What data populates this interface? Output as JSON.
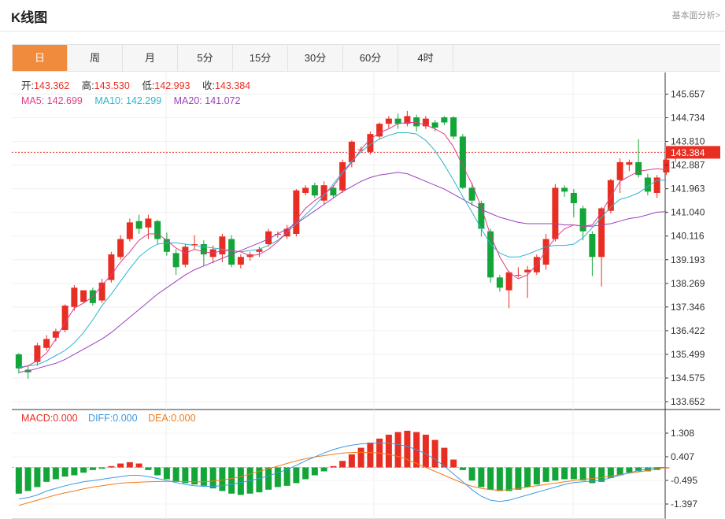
{
  "header": {
    "title": "K线图",
    "more_link": "基本面分析>"
  },
  "tabs": [
    {
      "label": "日",
      "active": true
    },
    {
      "label": "周"
    },
    {
      "label": "月"
    },
    {
      "label": "5分"
    },
    {
      "label": "15分"
    },
    {
      "label": "30分"
    },
    {
      "label": "60分"
    },
    {
      "label": "4时"
    }
  ],
  "legend": {
    "open_label": "开:",
    "open": "143.362",
    "high_label": "高:",
    "high": "143.530",
    "low_label": "低:",
    "low": "142.993",
    "close_label": "收:",
    "close": "143.384",
    "ma5_label": "MA5:",
    "ma5": "142.699",
    "ma10_label": "MA10:",
    "ma10": "142.299",
    "ma20_label": "MA20:",
    "ma20": "141.072"
  },
  "macd_legend": {
    "macd_label": "MACD:",
    "macd": "0.000",
    "diff_label": "DIFF:",
    "diff": "0.000",
    "dea_label": "DEA:",
    "dea": "0.000"
  },
  "colors": {
    "up": "#e82e22",
    "down": "#13a538",
    "ma5": "#dd3d89",
    "ma10": "#2cb5cf",
    "ma20": "#9b3fbf",
    "diff": "#3b9ae6",
    "dea": "#f07b1a",
    "last_price_line": "#e82e22"
  },
  "chart_data": {
    "type": "candlestick",
    "price_axis": {
      "ticks": [
        145.657,
        144.734,
        143.81,
        142.887,
        141.963,
        141.04,
        140.116,
        139.193,
        138.269,
        137.346,
        136.422,
        135.499,
        134.575,
        133.652
      ],
      "last_price_label": "143.384"
    },
    "macd_axis": {
      "ticks": [
        1.308,
        0.407,
        -0.495,
        -1.397
      ]
    },
    "candles": [
      [
        135.5,
        134.95,
        135.55,
        134.75
      ],
      [
        134.9,
        134.8,
        135.05,
        134.55
      ],
      [
        135.2,
        135.85,
        135.95,
        135.05
      ],
      [
        135.75,
        136.1,
        136.25,
        135.65
      ],
      [
        136.15,
        136.4,
        136.5,
        136.0
      ],
      [
        136.45,
        137.4,
        137.45,
        136.35
      ],
      [
        137.35,
        138.1,
        138.2,
        137.2
      ],
      [
        137.55,
        138.0,
        138.0,
        137.5
      ],
      [
        138.0,
        137.5,
        138.1,
        137.4
      ],
      [
        137.6,
        138.3,
        138.45,
        137.5
      ],
      [
        138.4,
        139.4,
        139.5,
        138.3
      ],
      [
        139.3,
        140.0,
        140.15,
        139.2
      ],
      [
        140.0,
        140.65,
        140.8,
        139.9
      ],
      [
        140.7,
        140.4,
        140.95,
        140.2
      ],
      [
        140.45,
        140.8,
        140.95,
        140.0
      ],
      [
        140.7,
        140.0,
        140.75,
        139.8
      ],
      [
        140.0,
        139.5,
        140.25,
        139.35
      ],
      [
        139.45,
        138.9,
        139.6,
        138.6
      ],
      [
        139.0,
        139.7,
        139.8,
        138.9
      ],
      [
        139.8,
        139.8,
        140.15,
        139.6
      ],
      [
        139.8,
        139.4,
        139.95,
        138.95
      ],
      [
        139.3,
        139.6,
        139.75,
        139.05
      ],
      [
        139.4,
        140.1,
        140.2,
        139.1
      ],
      [
        140.0,
        139.0,
        140.15,
        138.9
      ],
      [
        139.0,
        139.3,
        139.4,
        138.85
      ],
      [
        139.3,
        139.4,
        139.5,
        139.15
      ],
      [
        139.5,
        139.6,
        139.7,
        139.3
      ],
      [
        139.8,
        140.3,
        140.4,
        139.7
      ],
      [
        140.2,
        140.2,
        140.3,
        140.05
      ],
      [
        140.1,
        140.4,
        140.55,
        140.0
      ],
      [
        140.2,
        141.9,
        141.95,
        140.1
      ],
      [
        141.8,
        142.0,
        142.1,
        141.7
      ],
      [
        142.1,
        141.7,
        142.2,
        141.6
      ],
      [
        141.5,
        142.1,
        142.25,
        141.35
      ],
      [
        142.0,
        141.7,
        142.1,
        141.6
      ],
      [
        141.9,
        143.0,
        143.1,
        141.8
      ],
      [
        143.0,
        143.8,
        143.85,
        142.8
      ],
      [
        143.5,
        143.5,
        143.6,
        143.4
      ],
      [
        143.4,
        144.1,
        144.2,
        143.3
      ],
      [
        144.0,
        144.5,
        144.55,
        143.9
      ],
      [
        144.5,
        144.7,
        144.8,
        144.3
      ],
      [
        144.7,
        144.5,
        144.9,
        144.3
      ],
      [
        144.5,
        144.8,
        145.0,
        144.4
      ],
      [
        144.75,
        144.4,
        144.85,
        144.2
      ],
      [
        144.4,
        144.7,
        144.8,
        144.3
      ],
      [
        144.55,
        144.35,
        144.65,
        144.2
      ],
      [
        144.75,
        144.55,
        144.8,
        144.45
      ],
      [
        144.75,
        144.0,
        144.8,
        143.9
      ],
      [
        144.0,
        142.0,
        144.1,
        141.95
      ],
      [
        142.0,
        141.5,
        142.2,
        141.3
      ],
      [
        141.4,
        140.4,
        141.5,
        140.1
      ],
      [
        140.3,
        138.5,
        140.4,
        138.3
      ],
      [
        138.5,
        138.1,
        138.6,
        137.95
      ],
      [
        138.0,
        138.7,
        138.75,
        137.3
      ],
      [
        138.6,
        138.6,
        138.9,
        138.5
      ],
      [
        138.7,
        138.8,
        138.95,
        137.7
      ],
      [
        138.7,
        139.3,
        139.4,
        138.6
      ],
      [
        139.0,
        140.0,
        140.2,
        138.8
      ],
      [
        140.0,
        142.0,
        142.15,
        139.9
      ],
      [
        142.0,
        141.85,
        142.1,
        141.65
      ],
      [
        141.8,
        141.4,
        141.95,
        140.85
      ],
      [
        141.2,
        140.3,
        141.3,
        139.95
      ],
      [
        140.2,
        139.3,
        140.3,
        138.55
      ],
      [
        139.3,
        141.2,
        141.25,
        138.15
      ],
      [
        141.1,
        142.3,
        142.35,
        141.0
      ],
      [
        142.3,
        143.0,
        143.15,
        141.8
      ],
      [
        142.9,
        143.0,
        143.1,
        142.65
      ],
      [
        143.0,
        142.5,
        143.9,
        142.4
      ],
      [
        142.4,
        141.85,
        142.55,
        141.7
      ],
      [
        141.8,
        142.4,
        142.5,
        141.6
      ],
      [
        142.6,
        143.1,
        143.2,
        142.5
      ],
      [
        143.362,
        143.384,
        143.53,
        142.993
      ]
    ],
    "ma5": [
      134.95,
      135.05,
      135.25,
      135.55,
      136.1,
      136.75,
      137.3,
      137.5,
      137.75,
      138.2,
      138.6,
      139.1,
      139.5,
      139.95,
      140.2,
      140.2,
      139.95,
      139.65,
      139.45,
      139.6,
      139.5,
      139.45,
      139.55,
      139.55,
      139.5,
      139.35,
      139.4,
      139.6,
      139.9,
      140.25,
      140.75,
      141.2,
      141.5,
      141.75,
      142.05,
      142.55,
      143.0,
      143.5,
      143.9,
      144.15,
      144.3,
      144.5,
      144.55,
      144.55,
      144.45,
      144.3,
      144.1,
      143.6,
      142.85,
      142.15,
      141.25,
      140.15,
      139.3,
      138.7,
      138.45,
      138.6,
      139.0,
      139.55,
      140.05,
      140.4,
      140.55,
      140.5,
      140.55,
      141.05,
      141.65,
      142.25,
      142.45,
      142.65,
      142.7,
      142.75,
      142.7
    ],
    "ma10": [
      135.0,
      135.05,
      135.1,
      135.25,
      135.45,
      135.65,
      135.95,
      136.35,
      136.85,
      137.4,
      137.85,
      138.35,
      138.85,
      139.3,
      139.6,
      139.8,
      139.85,
      139.85,
      139.8,
      139.75,
      139.7,
      139.65,
      139.6,
      139.55,
      139.5,
      139.55,
      139.6,
      139.75,
      139.95,
      140.25,
      140.6,
      140.95,
      141.3,
      141.7,
      142.15,
      142.6,
      143.05,
      143.4,
      143.7,
      143.9,
      144.05,
      144.15,
      144.15,
      144.1,
      143.85,
      143.45,
      142.9,
      142.3,
      141.65,
      141.05,
      140.4,
      139.8,
      139.45,
      139.3,
      139.3,
      139.4,
      139.55,
      139.7,
      139.75,
      139.75,
      139.8,
      140.05,
      140.45,
      140.85,
      141.25,
      141.55,
      141.65,
      141.8,
      142.05,
      142.3,
      142.3
    ],
    "ma20": [
      134.8,
      134.85,
      134.95,
      135.05,
      135.15,
      135.3,
      135.5,
      135.7,
      135.9,
      136.1,
      136.35,
      136.65,
      136.95,
      137.25,
      137.55,
      137.85,
      138.1,
      138.35,
      138.6,
      138.8,
      138.95,
      139.1,
      139.25,
      139.4,
      139.55,
      139.7,
      139.85,
      140.0,
      140.2,
      140.4,
      140.6,
      140.85,
      141.1,
      141.35,
      141.6,
      141.85,
      142.05,
      142.25,
      142.4,
      142.5,
      142.55,
      142.6,
      142.55,
      142.4,
      142.25,
      142.1,
      141.95,
      141.75,
      141.55,
      141.35,
      141.15,
      141.0,
      140.85,
      140.75,
      140.65,
      140.6,
      140.6,
      140.6,
      140.6,
      140.55,
      140.55,
      140.5,
      140.5,
      140.55,
      140.6,
      140.7,
      140.8,
      140.85,
      140.95,
      141.05,
      141.07
    ],
    "macd_bars": [
      -1.0,
      -0.9,
      -0.75,
      -0.55,
      -0.45,
      -0.35,
      -0.3,
      -0.2,
      -0.1,
      -0.05,
      0.05,
      0.15,
      0.2,
      0.15,
      -0.1,
      -0.3,
      -0.45,
      -0.55,
      -0.6,
      -0.65,
      -0.7,
      -0.8,
      -0.9,
      -1.0,
      -1.05,
      -1.0,
      -0.95,
      -0.85,
      -0.75,
      -0.7,
      -0.6,
      -0.45,
      -0.3,
      -0.15,
      0.05,
      0.25,
      0.5,
      0.75,
      0.95,
      1.1,
      1.25,
      1.35,
      1.4,
      1.35,
      1.25,
      1.05,
      0.75,
      0.3,
      -0.1,
      -0.5,
      -0.75,
      -0.85,
      -0.9,
      -0.9,
      -0.85,
      -0.75,
      -0.65,
      -0.55,
      -0.5,
      -0.45,
      -0.45,
      -0.5,
      -0.6,
      -0.55,
      -0.4,
      -0.3,
      -0.2,
      -0.15,
      -0.15,
      -0.1,
      0.0
    ],
    "diff": [
      -1.2,
      -1.15,
      -1.05,
      -0.9,
      -0.8,
      -0.7,
      -0.62,
      -0.55,
      -0.5,
      -0.45,
      -0.4,
      -0.35,
      -0.3,
      -0.3,
      -0.35,
      -0.42,
      -0.5,
      -0.58,
      -0.65,
      -0.7,
      -0.72,
      -0.72,
      -0.7,
      -0.65,
      -0.58,
      -0.5,
      -0.42,
      -0.32,
      -0.2,
      -0.08,
      0.08,
      0.25,
      0.4,
      0.55,
      0.68,
      0.78,
      0.85,
      0.9,
      0.92,
      0.93,
      0.92,
      0.88,
      0.8,
      0.68,
      0.52,
      0.3,
      0.05,
      -0.25,
      -0.55,
      -0.85,
      -1.1,
      -1.25,
      -1.3,
      -1.25,
      -1.15,
      -1.05,
      -0.95,
      -0.85,
      -0.75,
      -0.65,
      -0.58,
      -0.55,
      -0.52,
      -0.48,
      -0.4,
      -0.3,
      -0.2,
      -0.12,
      -0.05,
      0.0,
      0.0
    ],
    "dea": [
      -1.45,
      -1.35,
      -1.25,
      -1.15,
      -1.05,
      -0.97,
      -0.9,
      -0.82,
      -0.75,
      -0.7,
      -0.65,
      -0.6,
      -0.58,
      -0.56,
      -0.55,
      -0.54,
      -0.53,
      -0.53,
      -0.54,
      -0.55,
      -0.55,
      -0.52,
      -0.48,
      -0.42,
      -0.35,
      -0.25,
      -0.15,
      -0.05,
      0.05,
      0.15,
      0.25,
      0.33,
      0.4,
      0.45,
      0.5,
      0.55,
      0.57,
      0.58,
      0.57,
      0.55,
      0.5,
      0.42,
      0.3,
      0.15,
      0.0,
      -0.15,
      -0.3,
      -0.45,
      -0.6,
      -0.72,
      -0.8,
      -0.85,
      -0.87,
      -0.85,
      -0.8,
      -0.75,
      -0.7,
      -0.65,
      -0.6,
      -0.55,
      -0.5,
      -0.46,
      -0.42,
      -0.38,
      -0.33,
      -0.28,
      -0.22,
      -0.17,
      -0.12,
      -0.06,
      0.0
    ]
  }
}
